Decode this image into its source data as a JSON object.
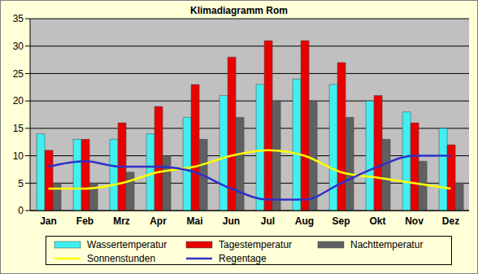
{
  "chart_data": {
    "type": "bar",
    "title": "Klimadiagramm Rom",
    "categories": [
      "Jan",
      "Feb",
      "Mrz",
      "Apr",
      "Mai",
      "Jun",
      "Jul",
      "Aug",
      "Sep",
      "Okt",
      "Nov",
      "Dez"
    ],
    "series": [
      {
        "name": "Wassertemperatur",
        "type": "bar",
        "color": "#40f0f0",
        "values": [
          14,
          13,
          13,
          14,
          17,
          21,
          23,
          24,
          23,
          20,
          18,
          15
        ]
      },
      {
        "name": "Tagestemperatur",
        "type": "bar",
        "color": "#e80000",
        "values": [
          11,
          13,
          16,
          19,
          23,
          28,
          31,
          31,
          27,
          21,
          16,
          12
        ]
      },
      {
        "name": "Nachttemperatur",
        "type": "bar",
        "color": "#606060",
        "values": [
          5,
          5,
          7,
          10,
          13,
          17,
          20,
          20,
          17,
          13,
          9,
          5
        ]
      },
      {
        "name": "Sonnenstunden",
        "type": "line",
        "marker": "none",
        "color": "#ffff00",
        "values": [
          4,
          4,
          5,
          7,
          8,
          10,
          11,
          10,
          7,
          6,
          5,
          4
        ]
      },
      {
        "name": "Regentage",
        "type": "line",
        "marker": "none",
        "color": "#3030c8",
        "values": [
          8,
          9,
          8,
          8,
          7,
          4,
          2,
          2,
          5,
          8,
          10,
          10
        ]
      }
    ],
    "ylim": [
      0,
      35
    ],
    "yticks": [
      0,
      5,
      10,
      15,
      20,
      25,
      30,
      35
    ],
    "grid": true,
    "legend": "bottom"
  }
}
